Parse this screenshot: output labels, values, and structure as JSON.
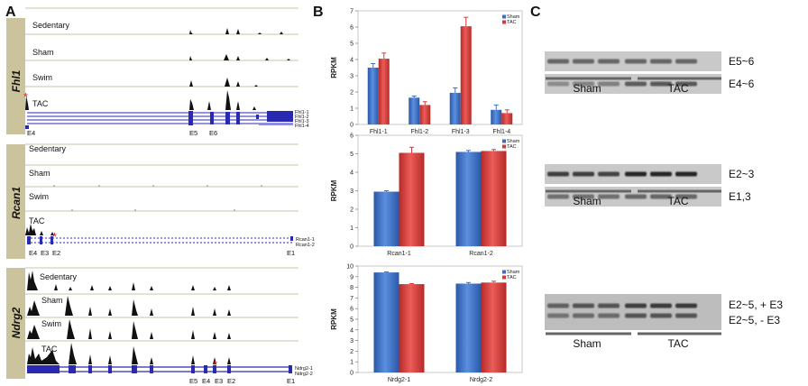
{
  "panels": {
    "A": {
      "label": "A",
      "genes": [
        {
          "name": "Fhl1",
          "tracks": [
            "Sedentary",
            "Sham",
            "Swim",
            "TAC"
          ],
          "isoforms": [
            "Fhl1-1",
            "Fhl1-2",
            "Fhl1-3",
            "Fhl1-4"
          ],
          "exons": [
            "E4",
            "E5",
            "E6"
          ]
        },
        {
          "name": "Rcan1",
          "tracks": [
            "Sedentary",
            "Sham",
            "Swim",
            "TAC"
          ],
          "isoforms": [
            "Rcan1-1",
            "Rcan1-2"
          ],
          "exons": [
            "E4",
            "E3",
            "E2",
            "E1"
          ]
        },
        {
          "name": "Ndrg2",
          "tracks": [
            "Sedentary",
            "Sham",
            "Swim",
            "TAC"
          ],
          "isoforms": [
            "Ndrg2-1",
            "Ndrg2-2"
          ],
          "exons": [
            "E5",
            "E4",
            "E3",
            "E2",
            "E1"
          ]
        }
      ],
      "marker": "*"
    },
    "B": {
      "label": "B"
    },
    "C": {
      "label": "C",
      "gels": [
        {
          "bands": [
            "E5~6",
            "E4~6"
          ],
          "groups": [
            "Sham",
            "TAC"
          ]
        },
        {
          "bands": [
            "E2~3",
            "E1,3"
          ],
          "groups": [
            "Sham",
            "TAC"
          ]
        },
        {
          "bands": [
            "E2~5, + E3",
            "E2~5, - E3"
          ],
          "groups": [
            "Sham",
            "TAC"
          ]
        }
      ]
    }
  },
  "chart_data": [
    {
      "type": "bar",
      "ylabel": "RPKM",
      "categories": [
        "Fhl1-1",
        "Fhl1-2",
        "Fhl1-3",
        "Fhl1-4"
      ],
      "ylim": [
        0,
        7
      ],
      "yticks": [
        0,
        1,
        2,
        3,
        4,
        5,
        6,
        7
      ],
      "series": [
        {
          "name": "Sham",
          "color": "#3a6fc4",
          "values": [
            3.5,
            1.65,
            1.95,
            0.9
          ],
          "errors": [
            0.25,
            0.1,
            0.3,
            0.3
          ]
        },
        {
          "name": "TAC",
          "color": "#d43a36",
          "values": [
            4.05,
            1.2,
            6.05,
            0.7
          ],
          "errors": [
            0.35,
            0.2,
            0.55,
            0.2
          ]
        }
      ],
      "legend": "top-right"
    },
    {
      "type": "bar",
      "ylabel": "RPKM",
      "categories": [
        "Rcan1-1",
        "Rcan1-2"
      ],
      "ylim": [
        0,
        6
      ],
      "yticks": [
        0,
        1,
        2,
        3,
        4,
        5,
        6
      ],
      "series": [
        {
          "name": "Sham",
          "color": "#3a6fc4",
          "values": [
            2.95,
            5.1
          ],
          "errors": [
            0.05,
            0.08
          ]
        },
        {
          "name": "TAC",
          "color": "#d43a36",
          "values": [
            5.05,
            5.15
          ],
          "errors": [
            0.3,
            0.08
          ]
        }
      ],
      "legend": "top-right"
    },
    {
      "type": "bar",
      "ylabel": "RPKM",
      "categories": [
        "Nrdg2-1",
        "Nrdg2-2"
      ],
      "ylim": [
        0,
        10
      ],
      "yticks": [
        0,
        1,
        2,
        3,
        4,
        5,
        6,
        7,
        8,
        9,
        10
      ],
      "series": [
        {
          "name": "Sham",
          "color": "#3a6fc4",
          "values": [
            9.4,
            8.35
          ],
          "errors": [
            0.05,
            0.1
          ]
        },
        {
          "name": "TAC",
          "color": "#d43a36",
          "values": [
            8.3,
            8.45
          ],
          "errors": [
            0.05,
            0.12
          ]
        }
      ],
      "legend": "top-right"
    }
  ]
}
